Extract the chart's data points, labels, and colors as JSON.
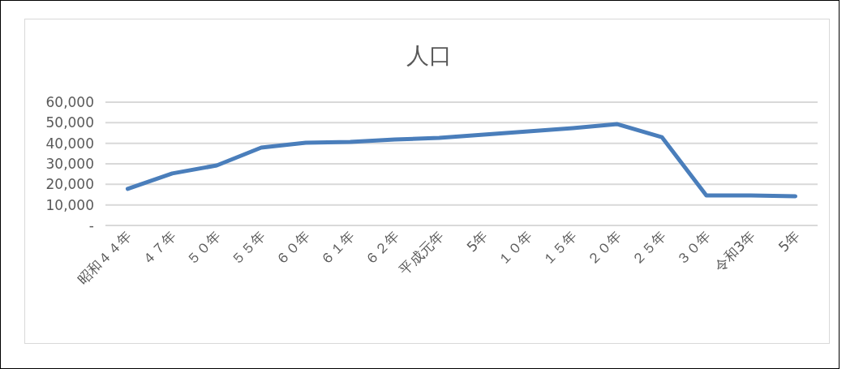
{
  "chart_data": {
    "type": "line",
    "title": "人口",
    "categories": [
      "昭和４４年",
      "４７年",
      "５０年",
      "５５年",
      "６０年",
      "６１年",
      "６２年",
      "平成元年",
      "5年",
      "１０年",
      "１５年",
      "２０年",
      "２５年",
      "３０年",
      "令和3年",
      "5年"
    ],
    "series": [
      {
        "color": "#4a7ebb",
        "values": [
          17800,
          25300,
          29200,
          37900,
          40300,
          40700,
          41800,
          42600,
          44200,
          45800,
          47400,
          49300,
          43000,
          14600,
          14600,
          14200
        ]
      }
    ],
    "ylim": [
      0,
      60000
    ],
    "yticks": [
      {
        "value": 0,
        "label": "-"
      },
      {
        "value": 10000,
        "label": "10,000"
      },
      {
        "value": 20000,
        "label": "20,000"
      },
      {
        "value": 30000,
        "label": "30,000"
      },
      {
        "value": 40000,
        "label": "40,000"
      },
      {
        "value": 50000,
        "label": "50,000"
      },
      {
        "value": 60000,
        "label": "60,000"
      }
    ],
    "grid": "y",
    "marker": "none",
    "line_style": "solid"
  }
}
